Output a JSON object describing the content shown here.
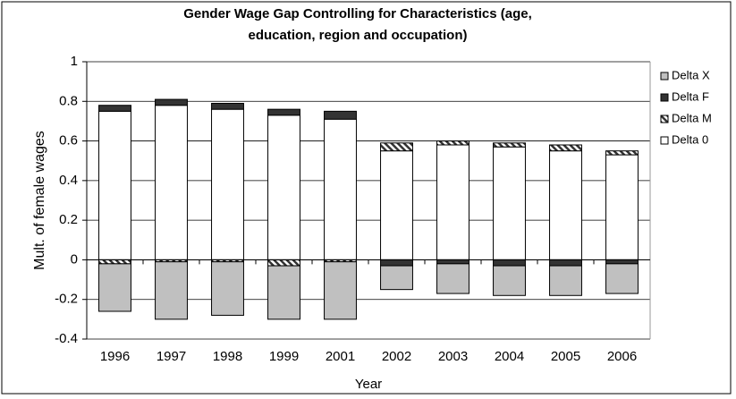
{
  "chart_data": {
    "type": "stacked-bar",
    "title": [
      "Gender  Wage Gap Controlling for Characteristics  (age,",
      "education, region and occupation)"
    ],
    "y_label": "Mult. of female wages",
    "x_label": "Year",
    "categories": [
      "1996",
      "1997",
      "1998",
      "1999",
      "2001",
      "2002",
      "2003",
      "2004",
      "2005",
      "2006"
    ],
    "series": [
      {
        "name": "Delta 0",
        "color": "#ffffff",
        "values": [
          0.75,
          0.78,
          0.76,
          0.73,
          0.71,
          0.55,
          0.58,
          0.57,
          0.55,
          0.53
        ]
      },
      {
        "name": "Delta M",
        "color": "#333333",
        "pattern": "diagonal",
        "values": [
          -0.02,
          -0.01,
          -0.01,
          -0.03,
          -0.01,
          0.04,
          0.02,
          0.02,
          0.03,
          0.02
        ]
      },
      {
        "name": "Delta F",
        "color": "#333333",
        "values": [
          0.03,
          0.03,
          0.03,
          0.03,
          0.04,
          -0.03,
          -0.02,
          -0.03,
          -0.03,
          -0.02
        ]
      },
      {
        "name": "Delta X",
        "color": "#c0c0c0",
        "values": [
          -0.24,
          -0.29,
          -0.27,
          -0.27,
          -0.29,
          -0.12,
          -0.15,
          -0.15,
          -0.15,
          -0.15
        ]
      }
    ],
    "ylim": [
      -0.4,
      1
    ],
    "yticks": [
      -0.4,
      -0.2,
      0,
      0.2,
      0.4,
      0.6,
      0.8,
      1
    ],
    "grid": true,
    "legend": "right"
  }
}
